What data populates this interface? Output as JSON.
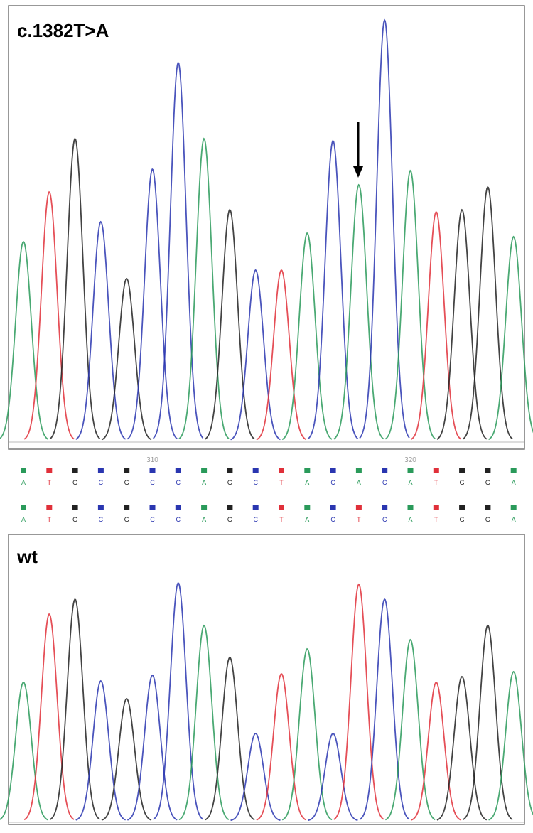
{
  "colors": {
    "A": "#2a9a5a",
    "T": "#e0303a",
    "G": "#222222",
    "C": "#2a36b0"
  },
  "panels": [
    {
      "label": "c.1382T>A",
      "peaks": [
        {
          "base": "A",
          "height": 280
        },
        {
          "base": "T",
          "height": 350
        },
        {
          "base": "G",
          "height": 425
        },
        {
          "base": "C",
          "height": 308
        },
        {
          "base": "G",
          "height": 228
        },
        {
          "base": "C",
          "height": 382
        },
        {
          "base": "C",
          "height": 532
        },
        {
          "base": "A",
          "height": 425
        },
        {
          "base": "G",
          "height": 325
        },
        {
          "base": "C",
          "height": 240
        },
        {
          "base": "T",
          "height": 240
        },
        {
          "base": "A",
          "height": 292
        },
        {
          "base": "C",
          "height": 422
        },
        {
          "base": "A",
          "height": 360
        },
        {
          "base": "C",
          "height": 592
        },
        {
          "base": "A",
          "height": 380
        },
        {
          "base": "T",
          "height": 322
        },
        {
          "base": "G",
          "height": 325
        },
        {
          "base": "G",
          "height": 357
        },
        {
          "base": "A",
          "height": 287
        }
      ]
    },
    {
      "label": "wt",
      "peaks": [
        {
          "base": "A",
          "height": 195
        },
        {
          "base": "T",
          "height": 291
        },
        {
          "base": "G",
          "height": 312
        },
        {
          "base": "C",
          "height": 197
        },
        {
          "base": "G",
          "height": 172
        },
        {
          "base": "C",
          "height": 205
        },
        {
          "base": "C",
          "height": 335
        },
        {
          "base": "A",
          "height": 275
        },
        {
          "base": "G",
          "height": 230
        },
        {
          "base": "C",
          "height": 123
        },
        {
          "base": "T",
          "height": 207
        },
        {
          "base": "A",
          "height": 242
        },
        {
          "base": "C",
          "height": 123
        },
        {
          "base": "T",
          "height": 333
        },
        {
          "base": "C",
          "height": 312
        },
        {
          "base": "A",
          "height": 255
        },
        {
          "base": "T",
          "height": 195
        },
        {
          "base": "G",
          "height": 203
        },
        {
          "base": "G",
          "height": 275
        },
        {
          "base": "A",
          "height": 210
        }
      ]
    }
  ],
  "ruler_ticks": [
    310,
    320
  ],
  "base_calls": [
    [
      "A",
      "T",
      "G",
      "C",
      "G",
      "C",
      "C",
      "A",
      "G",
      "C",
      "T",
      "A",
      "C",
      "A",
      "C",
      "A",
      "T",
      "G",
      "G",
      "A"
    ],
    [
      "A",
      "T",
      "G",
      "C",
      "G",
      "C",
      "C",
      "A",
      "G",
      "C",
      "T",
      "A",
      "C",
      "T",
      "C",
      "A",
      "T",
      "G",
      "G",
      "A"
    ]
  ]
}
